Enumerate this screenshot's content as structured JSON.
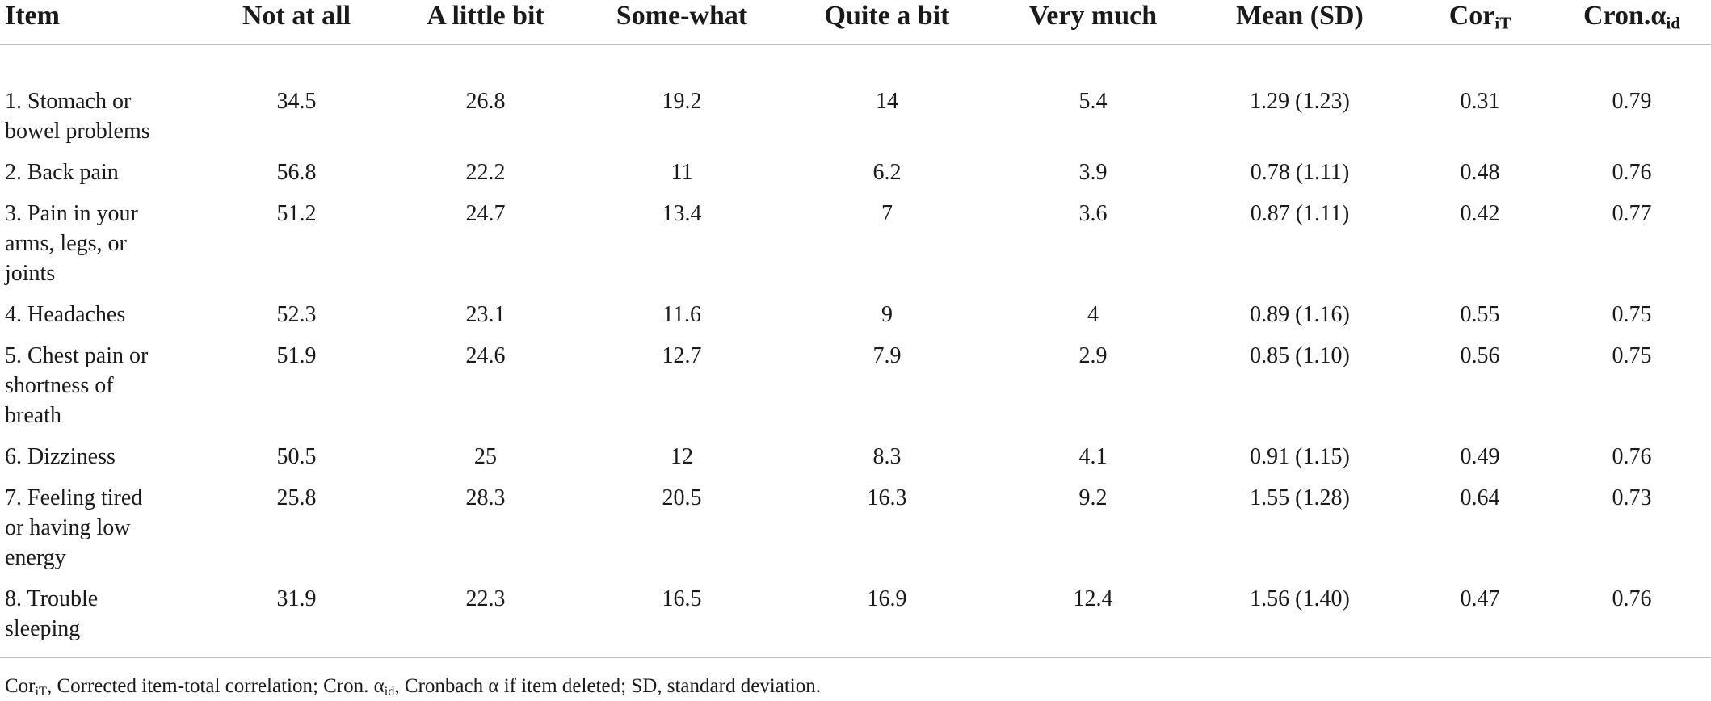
{
  "table": {
    "headers": {
      "item": "Item",
      "not_at_all": "Not at all",
      "a_little_bit": "A little bit",
      "somewhat": "Some-what",
      "quite_a_bit": "Quite a bit",
      "very_much": "Very much",
      "mean_sd": "Mean (SD)",
      "cor_base": "Cor",
      "cor_sub": "iT",
      "cron_base": "Cron.α",
      "cron_sub": "id"
    },
    "rows": [
      {
        "item_line1": "1. Stomach or",
        "item_line2": "bowel problems",
        "item_line3": "",
        "not_at_all": "34.5",
        "a_little_bit": "26.8",
        "somewhat": "19.2",
        "quite_a_bit": "14",
        "very_much": "5.4",
        "mean_sd": "1.29 (1.23)",
        "cor": "0.31",
        "cron": "0.79"
      },
      {
        "item_line1": "2. Back pain",
        "item_line2": "",
        "item_line3": "",
        "not_at_all": "56.8",
        "a_little_bit": "22.2",
        "somewhat": "11",
        "quite_a_bit": "6.2",
        "very_much": "3.9",
        "mean_sd": "0.78 (1.11)",
        "cor": "0.48",
        "cron": "0.76"
      },
      {
        "item_line1": "3. Pain in your",
        "item_line2": "arms, legs, or",
        "item_line3": "joints",
        "not_at_all": "51.2",
        "a_little_bit": "24.7",
        "somewhat": "13.4",
        "quite_a_bit": "7",
        "very_much": "3.6",
        "mean_sd": "0.87 (1.11)",
        "cor": "0.42",
        "cron": "0.77"
      },
      {
        "item_line1": "4. Headaches",
        "item_line2": "",
        "item_line3": "",
        "not_at_all": "52.3",
        "a_little_bit": "23.1",
        "somewhat": "11.6",
        "quite_a_bit": "9",
        "very_much": "4",
        "mean_sd": "0.89 (1.16)",
        "cor": "0.55",
        "cron": "0.75"
      },
      {
        "item_line1": "5. Chest pain or",
        "item_line2": "shortness of",
        "item_line3": "breath",
        "not_at_all": "51.9",
        "a_little_bit": "24.6",
        "somewhat": "12.7",
        "quite_a_bit": "7.9",
        "very_much": "2.9",
        "mean_sd": "0.85 (1.10)",
        "cor": "0.56",
        "cron": "0.75"
      },
      {
        "item_line1": "6. Dizziness",
        "item_line2": "",
        "item_line3": "",
        "not_at_all": "50.5",
        "a_little_bit": "25",
        "somewhat": "12",
        "quite_a_bit": "8.3",
        "very_much": "4.1",
        "mean_sd": "0.91 (1.15)",
        "cor": "0.49",
        "cron": "0.76"
      },
      {
        "item_line1": "7. Feeling tired",
        "item_line2": "or having low",
        "item_line3": "energy",
        "not_at_all": "25.8",
        "a_little_bit": "28.3",
        "somewhat": "20.5",
        "quite_a_bit": "16.3",
        "very_much": "9.2",
        "mean_sd": "1.55 (1.28)",
        "cor": "0.64",
        "cron": "0.73"
      },
      {
        "item_line1": "8. Trouble",
        "item_line2": "sleeping",
        "item_line3": "",
        "not_at_all": "31.9",
        "a_little_bit": "22.3",
        "somewhat": "16.5",
        "quite_a_bit": "16.9",
        "very_much": "12.4",
        "mean_sd": "1.56 (1.40)",
        "cor": "0.47",
        "cron": "0.76"
      }
    ]
  },
  "footnote": {
    "cor_base": "Cor",
    "cor_sub": "iT",
    "cor_def": ", Corrected item-total correlation; Cron. α",
    "cron_sub": "id",
    "cron_def": ", Cronbach α if item deleted; SD, standard deviation."
  }
}
